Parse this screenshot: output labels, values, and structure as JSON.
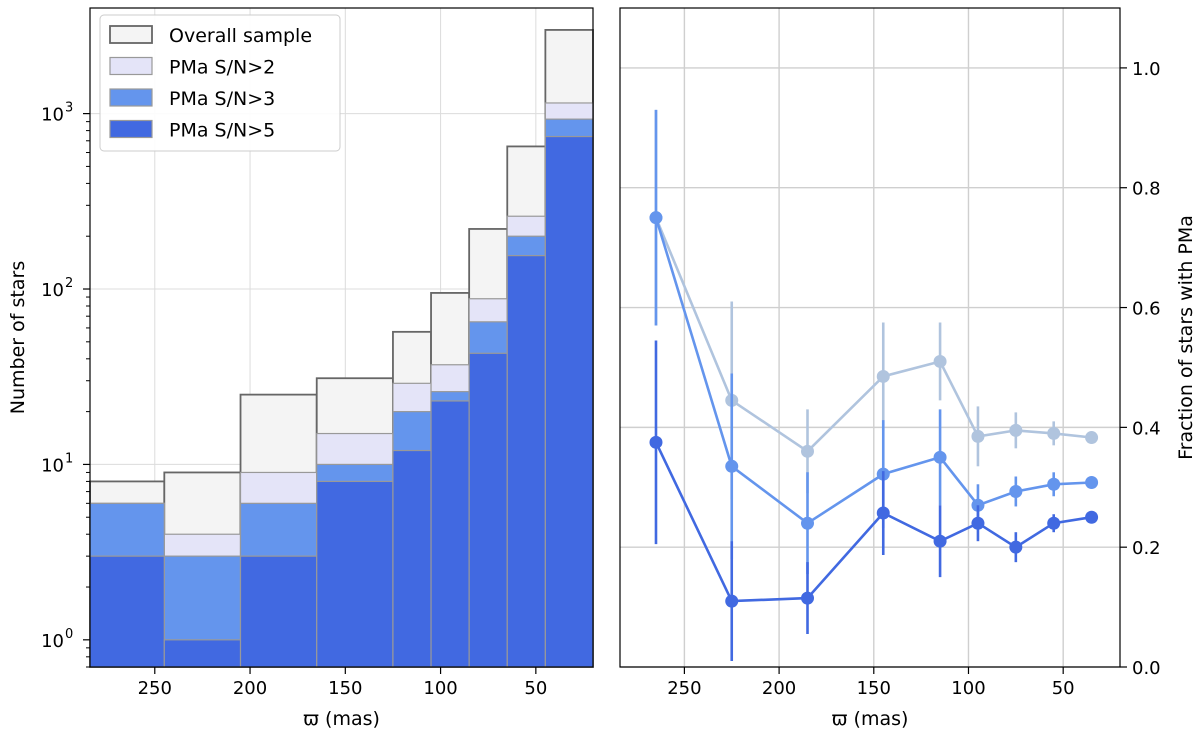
{
  "chart_data": [
    {
      "type": "bar",
      "subtype": "stacked-overlaid-histogram",
      "xlabel": "ϖ (mas)",
      "ylabel": "Number of stars",
      "yscale": "log",
      "xlim": [
        284,
        20
      ],
      "ylim": [
        0.7,
        4000
      ],
      "grid": true,
      "legend_position": "top-left",
      "xticks": [
        250,
        200,
        150,
        100,
        50
      ],
      "yticks": [
        1,
        10,
        100,
        1000
      ],
      "ytick_labels_base": "10",
      "ytick_labels_exp": [
        "0",
        "1",
        "2",
        "3"
      ],
      "bin_edges": [
        284,
        245,
        205,
        165,
        125,
        105,
        85,
        65,
        45,
        20
      ],
      "series": [
        {
          "name": "Overall sample",
          "color": "#f4f4f4",
          "edge": "#666666",
          "values": [
            8,
            9,
            25,
            31,
            57,
            95,
            220,
            650,
            3000
          ]
        },
        {
          "name": "PMa S/N>2",
          "color": "#e4e4f8",
          "edge": "#999999",
          "values": [
            6,
            4,
            9,
            15,
            29,
            37,
            88,
            260,
            1150
          ]
        },
        {
          "name": "PMa S/N>3",
          "color": "#6495ed",
          "edge": "#999999",
          "values": [
            6,
            3,
            6,
            10,
            20,
            26,
            65,
            200,
            930
          ]
        },
        {
          "name": "PMa S/N>5",
          "color": "#4169e1",
          "edge": "#999999",
          "values": [
            3,
            1,
            3,
            8,
            12,
            23,
            43,
            155,
            740
          ]
        }
      ]
    },
    {
      "type": "line",
      "subtype": "errorbar",
      "xlabel": "ϖ (mas)",
      "ylabel": "Fraction of stars with PMa",
      "xlim": [
        284,
        20
      ],
      "ylim": [
        0.0,
        1.1
      ],
      "grid": true,
      "xticks": [
        250,
        200,
        150,
        100,
        50
      ],
      "yticks": [
        0.0,
        0.2,
        0.4,
        0.6,
        0.8,
        1.0
      ],
      "ytick_labels": [
        "0.0",
        "0.2",
        "0.4",
        "0.6",
        "0.8",
        "1.0"
      ],
      "x": [
        265,
        225,
        185,
        145,
        115,
        95,
        75,
        55,
        35
      ],
      "series": [
        {
          "color": "#b0c4de",
          "values": [
            0.75,
            0.445,
            0.36,
            0.485,
            0.51,
            0.385,
            0.395,
            0.39,
            0.383
          ],
          "err": [
            0.18,
            0.165,
            0.07,
            0.09,
            0.065,
            0.05,
            0.03,
            0.02,
            0.01
          ]
        },
        {
          "color": "#6495ed",
          "values": [
            0.75,
            0.335,
            0.24,
            0.322,
            0.35,
            0.27,
            0.293,
            0.305,
            0.308
          ],
          "err": [
            0.18,
            0.155,
            0.085,
            0.09,
            0.08,
            0.035,
            0.025,
            0.02,
            0.01
          ]
        },
        {
          "color": "#4169e1",
          "values": [
            0.375,
            0.11,
            0.115,
            0.257,
            0.21,
            0.24,
            0.2,
            0.24,
            0.25
          ],
          "err": [
            0.17,
            0.1,
            0.06,
            0.07,
            0.06,
            0.03,
            0.025,
            0.015,
            0.01
          ]
        }
      ]
    }
  ]
}
